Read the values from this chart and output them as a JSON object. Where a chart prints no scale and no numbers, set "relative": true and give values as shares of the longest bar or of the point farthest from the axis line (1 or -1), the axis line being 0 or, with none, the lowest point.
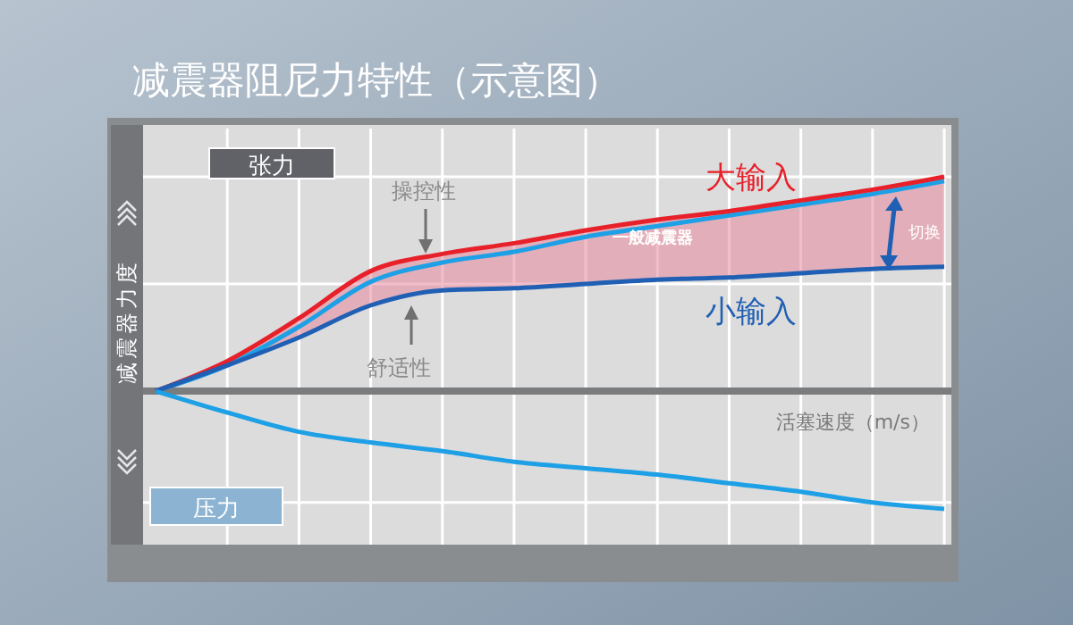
{
  "chart_data": {
    "type": "line",
    "title": "减震器阻尼力特性（示意图）",
    "xlabel": "活塞速度（m/s）",
    "ylabel": "减震器力度",
    "relative": true,
    "grid": true,
    "marker": "none",
    "line_style": "solid",
    "categories": [
      null,
      null,
      null,
      null,
      null,
      null,
      null,
      null,
      null,
      null,
      null,
      null
    ],
    "series": [
      {
        "name": "大输入",
        "color": "#e8202a",
        "values": [
          0,
          0.14,
          0.34,
          0.56,
          0.64,
          0.69,
          0.75,
          0.8,
          0.84,
          0.89,
          0.94,
          1.0
        ]
      },
      {
        "name": "一般减震器",
        "color": "#1ea0e6",
        "values": [
          0,
          0.12,
          0.3,
          0.51,
          0.6,
          0.65,
          0.72,
          0.77,
          0.82,
          0.87,
          0.92,
          0.98
        ],
        "lower": [
          0,
          0.12,
          0.25,
          0.4,
          0.47,
          0.48,
          0.5,
          0.52,
          0.53,
          0.55,
          0.57,
          0.58
        ],
        "upper": [
          0,
          0.14,
          0.34,
          0.56,
          0.64,
          0.69,
          0.75,
          0.8,
          0.84,
          0.89,
          0.94,
          1.0
        ]
      },
      {
        "name": "小输入",
        "color": "#1f5fb4",
        "values": [
          0,
          0.12,
          0.25,
          0.4,
          0.47,
          0.48,
          0.5,
          0.52,
          0.53,
          0.55,
          0.57,
          0.58
        ]
      },
      {
        "color": "#1ea0e6",
        "values": [
          0,
          -0.1,
          -0.19,
          -0.24,
          -0.28,
          -0.33,
          -0.36,
          -0.39,
          -0.43,
          -0.47,
          -0.52,
          -0.55
        ]
      }
    ],
    "annotations": [
      "张力",
      "压力",
      "操控性",
      "舒适性",
      "切换"
    ]
  }
}
